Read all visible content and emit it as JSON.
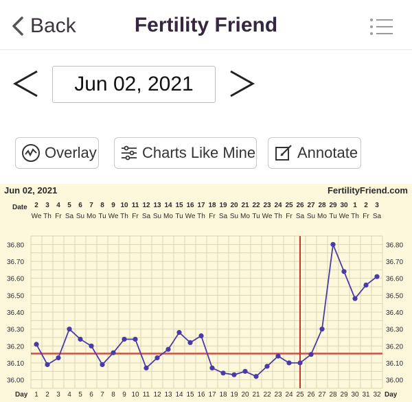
{
  "header": {
    "back_label": "Back",
    "title": "Fertility Friend"
  },
  "date_nav": {
    "current_date": "Jun 02, 2021"
  },
  "actions": {
    "overlay": "Overlay",
    "charts_like_mine": "Charts Like Mine",
    "annotate": "Annotate"
  },
  "chart_data": {
    "type": "line",
    "title": "Jun 02, 2021",
    "brand": "FertilityFriend.com",
    "date_row_label": "Date",
    "day_row_label": "Day",
    "dates": [
      "2",
      "3",
      "4",
      "5",
      "6",
      "7",
      "8",
      "9",
      "10",
      "11",
      "12",
      "13",
      "14",
      "15",
      "16",
      "17",
      "18",
      "19",
      "20",
      "21",
      "22",
      "23",
      "24",
      "25",
      "26",
      "27",
      "28",
      "29",
      "30",
      "1",
      "2",
      "3"
    ],
    "weekdays": [
      "We",
      "Th",
      "Fr",
      "Sa",
      "Su",
      "Mo",
      "Tu",
      "We",
      "Th",
      "Fr",
      "Sa",
      "Su",
      "Mo",
      "Tu",
      "We",
      "Th",
      "Fr",
      "Sa",
      "Su",
      "Mo",
      "Tu",
      "We",
      "Th",
      "Fr",
      "Sa",
      "Su",
      "Mo",
      "Tu",
      "We",
      "Th",
      "Fr",
      "Sa"
    ],
    "days": [
      "1",
      "2",
      "3",
      "4",
      "5",
      "6",
      "7",
      "8",
      "9",
      "10",
      "11",
      "12",
      "13",
      "14",
      "15",
      "16",
      "17",
      "18",
      "19",
      "20",
      "21",
      "22",
      "23",
      "24",
      "25",
      "26",
      "27",
      "28",
      "29",
      "30",
      "31",
      "32"
    ],
    "y_ticks": [
      "36.80",
      "36.70",
      "36.60",
      "36.50",
      "36.40",
      "36.30",
      "36.20",
      "36.10",
      "36.00"
    ],
    "ylim": [
      35.95,
      36.85
    ],
    "series": [
      {
        "values": [
          36.21,
          36.09,
          36.13,
          36.3,
          36.24,
          36.2,
          36.09,
          36.16,
          36.24,
          36.24,
          36.07,
          36.13,
          36.18,
          36.28,
          36.22,
          36.26,
          36.07,
          36.04,
          36.03,
          36.05,
          36.02,
          36.08,
          36.14,
          36.1,
          36.1,
          36.15,
          36.3,
          36.8,
          36.64,
          36.48,
          36.56,
          36.61
        ]
      }
    ],
    "coverline": 36.155,
    "ovulation_day": 25,
    "grid": true,
    "colors": {
      "line": "#4a3aa8",
      "coverline": "#c9574c",
      "ovulation": "#c0392b",
      "background": "#fdf8dc",
      "grid": "#d9d3b0"
    }
  }
}
